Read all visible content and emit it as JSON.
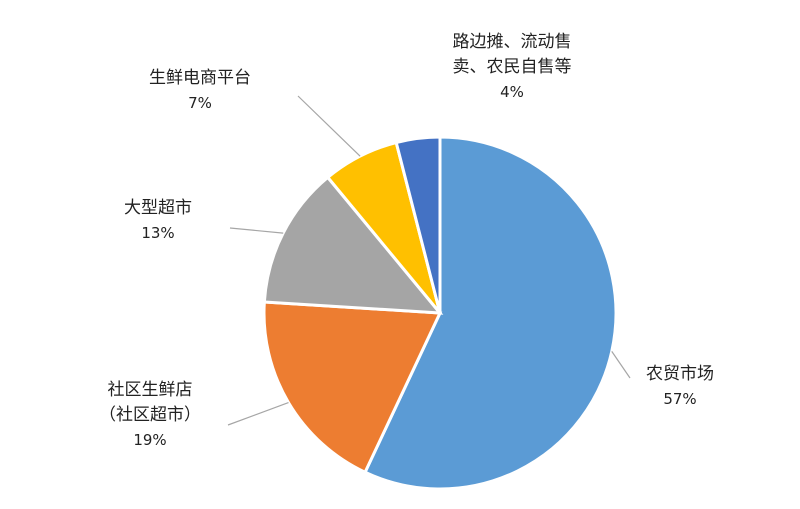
{
  "chart_data": {
    "type": "pie",
    "categories": [
      "农贸市场",
      "社区生鲜店（社区超市）",
      "大型超市",
      "生鲜电商平台",
      "路边摊、流动售卖、农民自售等"
    ],
    "values": [
      57,
      19,
      13,
      7,
      4
    ],
    "value_labels": [
      "57%",
      "19%",
      "13%",
      "7%",
      "4%"
    ],
    "colors": [
      "#5b9bd5",
      "#ed7d31",
      "#a5a5a5",
      "#ffc000",
      "#4472c4"
    ]
  }
}
